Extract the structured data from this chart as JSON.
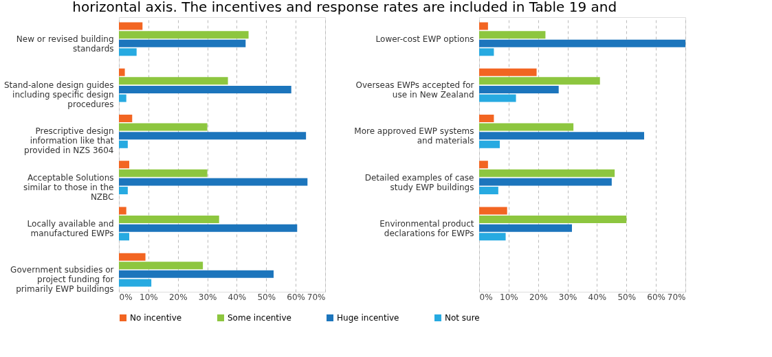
{
  "chart_data": [
    {
      "type": "bar",
      "orientation": "horizontal",
      "annotations": [
        "horizontal axis. The incentives and response rates are included in Table 19 and"
      ],
      "categories": [
        "New or revised building standards",
        "Stand-alone design guides including specific design procedures",
        "Prescriptive design information like that provided in NZS 3604",
        "Acceptable Solutions similar to those in the NZBC",
        "Locally available and manufactured EWPs",
        "Government subsidies or project funding for primarily EWP buildings"
      ],
      "series": [
        {
          "name": "No incentive",
          "color": "#f26522",
          "values": [
            8,
            2,
            4.5,
            3.5,
            2.5,
            9
          ]
        },
        {
          "name": "Some incentive",
          "color": "#8dc63f",
          "values": [
            44,
            37,
            30,
            30,
            34,
            28.5
          ]
        },
        {
          "name": "Huge incentive",
          "color": "#1c75bc",
          "values": [
            43,
            58.5,
            63.5,
            64,
            60.5,
            52.5
          ]
        },
        {
          "name": "Not sure",
          "color": "#27aae1",
          "values": [
            6,
            2.5,
            3,
            3,
            3.5,
            11
          ]
        }
      ],
      "xlim": [
        0,
        70
      ],
      "xticks": [
        {
          "value": 0,
          "label": "0%"
        },
        {
          "value": 10,
          "label": "10%"
        },
        {
          "value": 20,
          "label": "20%"
        },
        {
          "value": 30,
          "label": "30%"
        },
        {
          "value": 40,
          "label": "40%"
        },
        {
          "value": 50,
          "label": "50%"
        },
        {
          "value": 60,
          "label": "60%"
        },
        {
          "value": 70,
          "label": "70%"
        }
      ],
      "grid": "x",
      "legend": "bottom"
    },
    {
      "type": "bar",
      "orientation": "horizontal",
      "categories": [
        "Lower-cost EWP options",
        "Overseas EWPs accepted for use in New Zealand",
        "More approved EWP systems and materials",
        "Detailed examples of case study EWP buildings",
        "Environmental product declarations for EWPs",
        null
      ],
      "series": [
        {
          "name": "No incentive",
          "color": "#f26522",
          "values": [
            3,
            19.5,
            5,
            3,
            9.5,
            null
          ]
        },
        {
          "name": "Some incentive",
          "color": "#8dc63f",
          "values": [
            22.5,
            41,
            32,
            46,
            50,
            null
          ]
        },
        {
          "name": "Huge incentive",
          "color": "#1c75bc",
          "values": [
            70,
            27,
            56,
            45,
            31.5,
            null
          ]
        },
        {
          "name": "Not sure",
          "color": "#27aae1",
          "values": [
            5,
            12.5,
            7,
            6.5,
            9,
            null
          ]
        }
      ],
      "xlim": [
        0,
        70
      ],
      "xticks": [
        {
          "value": 0,
          "label": "0%"
        },
        {
          "value": 10,
          "label": "10%"
        },
        {
          "value": 20,
          "label": "20%"
        },
        {
          "value": 30,
          "label": "30%"
        },
        {
          "value": 40,
          "label": "40%"
        },
        {
          "value": 50,
          "label": "50%"
        },
        {
          "value": 60,
          "label": "60%"
        },
        {
          "value": 70,
          "label": "70%"
        }
      ],
      "grid": "x",
      "legend": "bottom"
    }
  ]
}
